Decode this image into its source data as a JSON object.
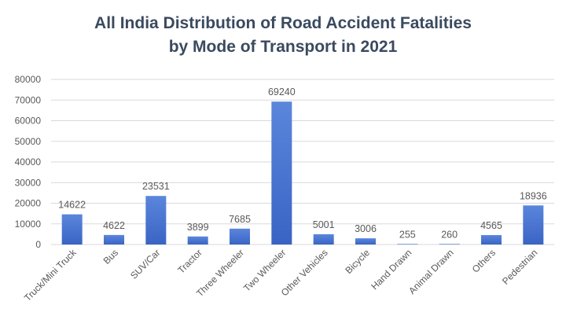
{
  "chart_data": {
    "type": "bar",
    "title_line1": "All India Distribution of Road Accident Fatalities",
    "title_line2": "by Mode of Transport in 2021",
    "xlabel": "",
    "ylabel": "",
    "ylim": [
      0,
      80000
    ],
    "yticks": [
      0,
      10000,
      20000,
      30000,
      40000,
      50000,
      60000,
      70000,
      80000
    ],
    "grid": true,
    "categories": [
      "Truck/Mini Truck",
      "Bus",
      "SUV/Car",
      "Tractor",
      "Three Wheeler",
      "Two Wheeler",
      "Other Vehicles",
      "Bicycle",
      "Hand Drawn",
      "Animal Drawn",
      "Others",
      "Pedestrian"
    ],
    "values": [
      14622,
      4622,
      23531,
      3899,
      7685,
      69240,
      5001,
      3006,
      255,
      260,
      4565,
      18936
    ],
    "bar_color": "#3a64c4",
    "bar_color_light": "#5b86dc"
  }
}
